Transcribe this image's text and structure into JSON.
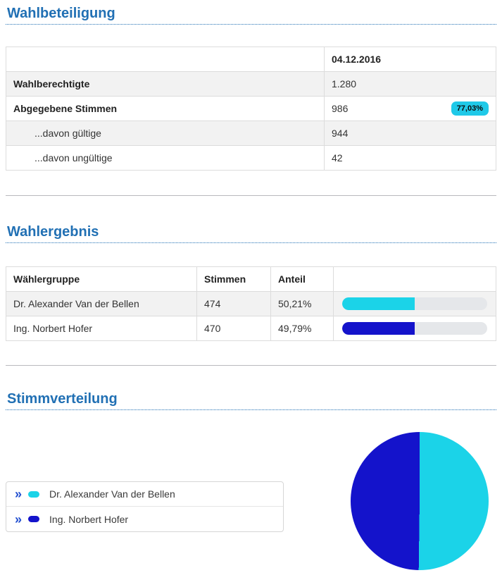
{
  "theme": {
    "heading_color": "#2170b4",
    "cyan": "#1bd3e8",
    "blue": "#1413cb",
    "chevron_color": "#2350d0",
    "badge_bg": "#1fc9e8"
  },
  "icons": {
    "legend_chevron": "»"
  },
  "sections": {
    "participation": {
      "title": "Wahlbeteiligung",
      "table": {
        "date_header": "04.12.2016",
        "rows": [
          {
            "label": "Wahlberechtigte",
            "value": "1.280"
          },
          {
            "label": "Abgegebene Stimmen",
            "value": "986",
            "badge": "77,03%"
          },
          {
            "label": "...davon gültige",
            "value": "944"
          },
          {
            "label": "...davon ungültige",
            "value": "42"
          }
        ]
      }
    },
    "results": {
      "title": "Wahlergebnis",
      "table": {
        "headers": {
          "group": "Wählergruppe",
          "votes": "Stimmen",
          "share": "Anteil"
        },
        "rows": [
          {
            "name": "Dr. Alexander Van der Bellen",
            "votes": "474",
            "share": "50,21%",
            "share_pct": 50.21,
            "color": "#1bd3e8"
          },
          {
            "name": "Ing. Norbert Hofer",
            "votes": "470",
            "share": "49,79%",
            "share_pct": 49.79,
            "color": "#1413cb"
          }
        ]
      }
    },
    "distribution": {
      "title": "Stimmverteilung",
      "legend": [
        {
          "label": "Dr. Alexander Van der Bellen",
          "color": "#1bd3e8"
        },
        {
          "label": "Ing. Norbert Hofer",
          "color": "#1413cb"
        }
      ]
    }
  },
  "chart_data": {
    "type": "pie",
    "title": "Stimmverteilung",
    "labels": [
      "Dr. Alexander Van der Bellen",
      "Ing. Norbert Hofer"
    ],
    "values": [
      50.21,
      49.79
    ],
    "votes": [
      474,
      470
    ],
    "colors": [
      "#1bd3e8",
      "#1413cb"
    ],
    "start_angle_deg": 0,
    "direction": "clockwise",
    "legend_position": "left"
  }
}
